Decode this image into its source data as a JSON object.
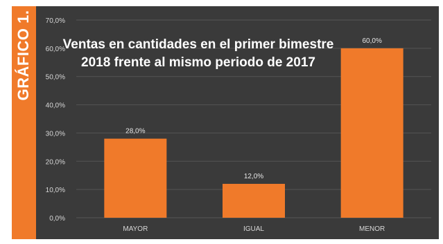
{
  "side_label": "GRÁFICO 1.",
  "colors": {
    "accent": "#f07a2a",
    "bar": "#f07a2a",
    "background": "#3a3a3a",
    "text": "#ffffff",
    "grid": "#555555"
  },
  "chart_data": {
    "type": "bar",
    "title": "Ventas en cantidades en el primer bimestre 2018 frente al mismo periodo de 2017",
    "categories": [
      "MAYOR",
      "IGUAL",
      "MENOR"
    ],
    "values": [
      28.0,
      12.0,
      60.0
    ],
    "value_labels": [
      "28,0%",
      "12,0%",
      "60,0%"
    ],
    "ylim": [
      0,
      70
    ],
    "yticks": [
      0,
      10,
      20,
      30,
      40,
      50,
      60,
      70
    ],
    "ytick_labels": [
      "0,0%",
      "10,0%",
      "20,0%",
      "30,0%",
      "40,0%",
      "50,0%",
      "60,0%",
      "70,0%"
    ],
    "grid": true,
    "legend": "none"
  }
}
